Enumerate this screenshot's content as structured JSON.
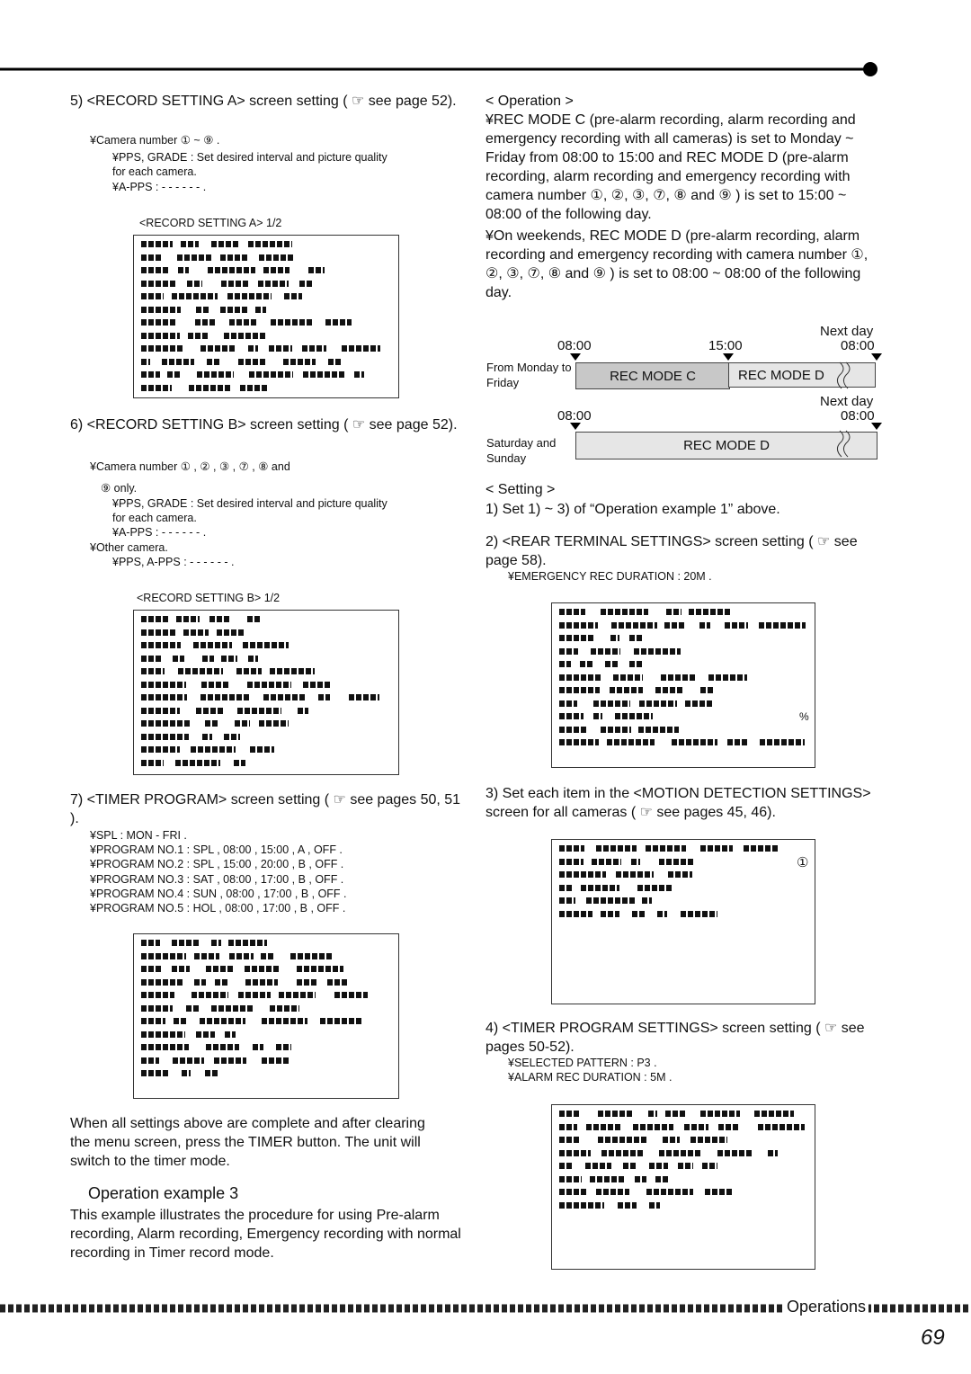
{
  "left": {
    "step5": {
      "title": "5) <RECORD SETTING A> screen setting ( ☞ see page 52).",
      "lines": [
        "¥Camera number  ①  ~  ⑨ .",
        "¥PPS, GRADE : Set desired interval and picture quality",
        "for each camera.",
        "¥A-PPS :  - - - - - - ."
      ],
      "caption": "<RECORD SETTING A> 1/2"
    },
    "step6": {
      "title": "6) <RECORD SETTING B> screen setting ( ☞ see page 52).",
      "lines": [
        "¥Camera number   ① ,   ② ,   ③ ,   ⑦ ,   ⑧   and",
        "⑨   only.",
        "¥PPS, GRADE : Set desired interval and picture quality",
        "for each camera.",
        "¥A-PPS :  - - - - - - .",
        "¥Other camera.",
        "¥PPS, A-PPS :  - - - - - - ."
      ],
      "caption": "<RECORD SETTING B> 1/2"
    },
    "step7": {
      "title": "7) <TIMER PROGRAM> screen setting ( ☞ see pages 50, 51 ).",
      "lines": [
        "¥SPL :   MON - FRI  .",
        "¥PROGRAM NO.1 :   SPL  ,  08:00  ,  15:00  ,  A  ,  OFF  .",
        "¥PROGRAM NO.2 :   SPL  ,  15:00  ,  20:00  ,  B  ,  OFF  .",
        "¥PROGRAM NO.3 :   SAT  ,  08:00  ,  17:00  ,  B  ,  OFF  .",
        "¥PROGRAM NO.4 :   SUN  ,  08:00  ,  17:00  ,  B  ,  OFF  .",
        "¥PROGRAM NO.5 :   HOL  ,  08:00  ,  17:00  ,  B  ,  OFF  ."
      ]
    },
    "after_paragraph": "When all settings above are complete and after clearing the menu screen, press the TIMER button. The unit will switch to the timer mode.",
    "example_heading": "Operation example 3",
    "example_paragraph": "This example illustrates the procedure for using Pre-alarm recording, Alarm recording, Emergency recording with normal recording in Timer record mode."
  },
  "right": {
    "operation_heading": "< Operation >",
    "operation_paragraphs": [
      "¥REC MODE C (pre-alarm recording, alarm recording and emergency recording with all cameras) is set to Monday ~ Friday from 08:00 to 15:00 and REC MODE D (pre-alarm recording, alarm recording and emergency recording with camera number ①, ②, ③, ⑦, ⑧ and ⑨ ) is set to 15:00 ~ 08:00 of the following day.",
      "¥On weekends, REC MODE D (pre-alarm recording, alarm recording and emergency recording with camera number ①, ②, ③, ⑦, ⑧ and ⑨ ) is set to 08:00 ~ 08:00 of the following day."
    ],
    "timeline": {
      "weekday": {
        "label": "From Monday to Friday",
        "next_day": "Next day",
        "times": [
          "08:00",
          "15:00",
          "08:00"
        ],
        "modes": [
          "REC MODE C",
          "REC MODE D"
        ]
      },
      "weekend": {
        "label": "Saturday and Sunday",
        "next_day": "Next day",
        "times": [
          "08:00",
          "08:00"
        ],
        "mode": "REC MODE D"
      }
    },
    "setting_heading": "< Setting >",
    "setting1": "1) Set 1) ~ 3) of “Operation example 1” above.",
    "setting2": {
      "title": "2) <REAR TERMINAL SETTINGS> screen setting ( ☞ see page 58).",
      "lines": [
        "¥EMERGENCY REC DURATION :   20M  ."
      ],
      "screen_mark": "%"
    },
    "setting3": {
      "title": "3) Set each item in the <MOTION DETECTION SETTINGS> screen for all cameras ( ☞ see pages 45, 46).",
      "screen_mark": "①"
    },
    "setting4": {
      "title": "4) <TIMER PROGRAM SETTINGS> screen setting ( ☞ see pages 50-52).",
      "lines": [
        "¥SELECTED PATTERN :   P3  .",
        "¥ALARM REC DURATION :   5M  ."
      ]
    }
  },
  "footer": {
    "section": "Operations",
    "page": "69"
  }
}
